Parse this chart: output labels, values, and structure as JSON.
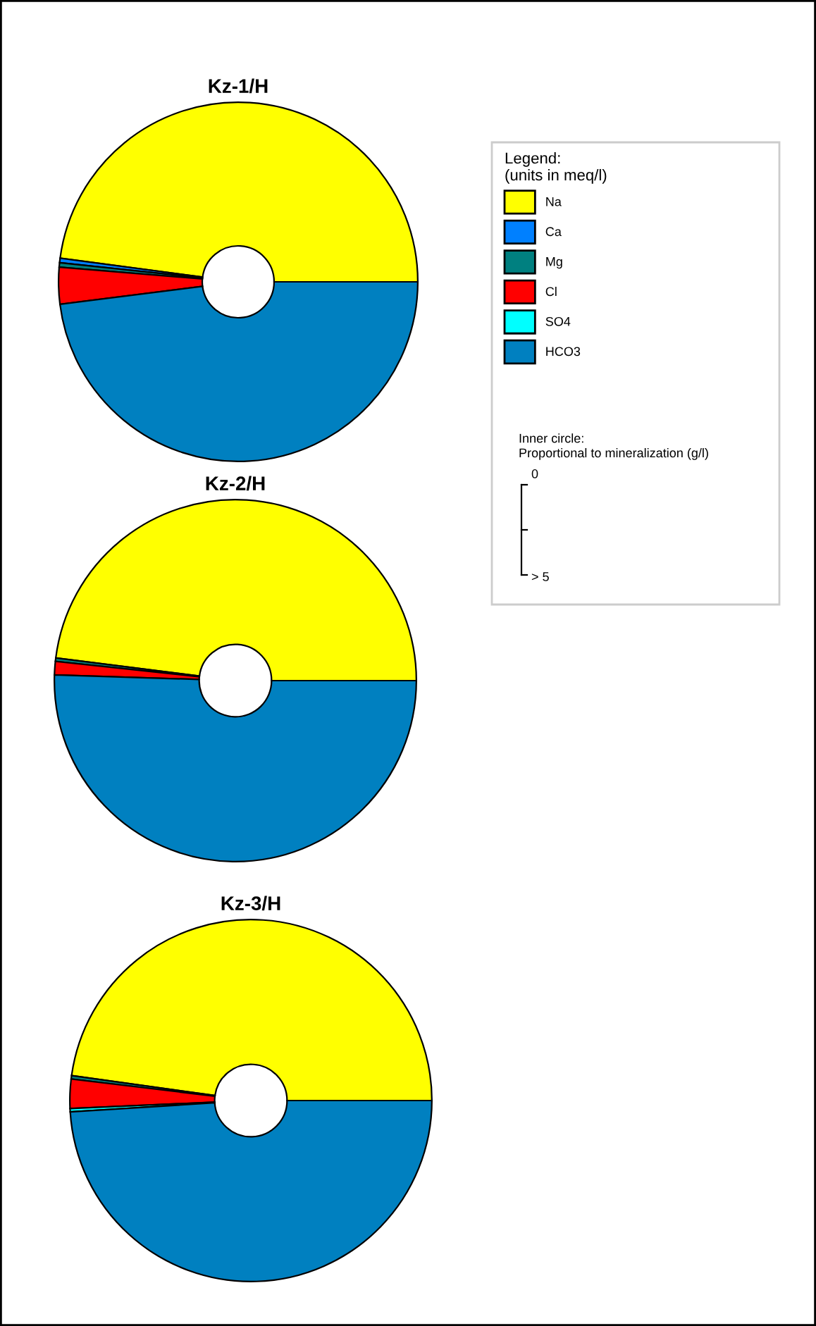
{
  "chart_data": [
    {
      "type": "donut",
      "title": "Kz-1/H",
      "categories": [
        "Na",
        "Ca",
        "Mg",
        "Cl",
        "SO4",
        "HCO3"
      ],
      "values": [
        47.9,
        0.4,
        0.4,
        3.3,
        null,
        48.0
      ],
      "colors": [
        "#ffff00",
        "#0080ff",
        "#008080",
        "#ff0000",
        "#00ffff",
        "#0080c0"
      ],
      "legend": "right",
      "legend_title": "Legend:\n(units in meq/l)",
      "annotations": [
        "Inner circle:\nProportional to mineralization (g/l)",
        "0",
        "> 5"
      ]
    },
    {
      "type": "donut",
      "title": "Kz-2/H",
      "categories": [
        null,
        null,
        null,
        null,
        null,
        null
      ],
      "values": [
        48.0,
        null,
        0.3,
        1.2,
        null,
        50.5
      ],
      "colors": [
        "#ffff00",
        "#0080ff",
        "#008080",
        "#ff0000",
        "#00ffff",
        "#0080c0"
      ]
    },
    {
      "type": "donut",
      "title": "Kz-3/H",
      "categories": [
        null,
        null,
        null,
        null,
        null,
        null
      ],
      "values": [
        47.8,
        null,
        0.3,
        2.6,
        0.3,
        49.0
      ],
      "colors": [
        "#ffff00",
        "#0080ff",
        "#008080",
        "#ff0000",
        "#00ffff",
        "#0080c0"
      ]
    }
  ]
}
